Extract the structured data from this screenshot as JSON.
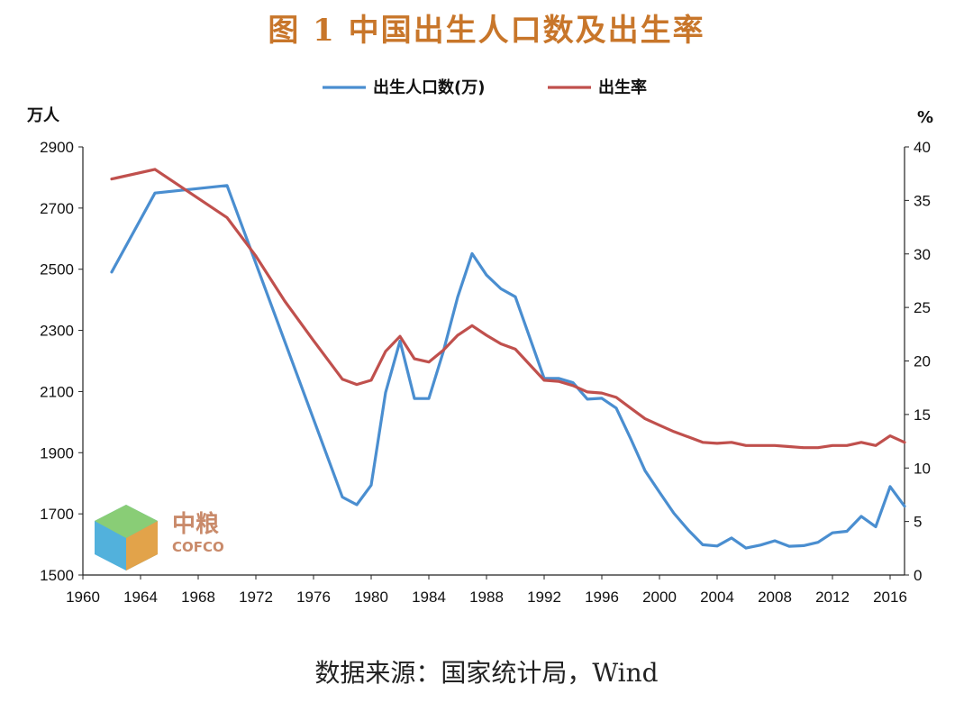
{
  "title": "图 1 中国出生人口数及出生率",
  "source": "数据来源：国家统计局，Wind",
  "logo": {
    "cn": "中粮",
    "en": "COFCO"
  },
  "chart_data": {
    "type": "line",
    "left_unit": "万人",
    "right_unit": "%",
    "y_left_lim": [
      1500,
      2900
    ],
    "y_left_ticks": [
      1500,
      1700,
      1900,
      2100,
      2300,
      2500,
      2700,
      2900
    ],
    "y_right_lim": [
      0,
      40
    ],
    "y_right_ticks": [
      0,
      5,
      10,
      15,
      20,
      25,
      30,
      35,
      40
    ],
    "x_lim": [
      1960,
      2017
    ],
    "x_ticks": [
      1960,
      1964,
      1968,
      1972,
      1976,
      1980,
      1984,
      1988,
      1992,
      1996,
      2000,
      2004,
      2008,
      2012,
      2016
    ],
    "legend_position": "top-center",
    "series": [
      {
        "name": "出生人口数(万)",
        "axis": "left",
        "color": "#4a8ed0",
        "x": [
          1962,
          1965,
          1970,
          1978,
          1979,
          1980,
          1981,
          1982,
          1983,
          1984,
          1985,
          1986,
          1987,
          1988,
          1989,
          1990,
          1992,
          1993,
          1994,
          1995,
          1996,
          1997,
          1998,
          1999,
          2000,
          2001,
          2002,
          2003,
          2004,
          2005,
          2006,
          2007,
          2008,
          2009,
          2010,
          2011,
          2012,
          2013,
          2014,
          2015,
          2016,
          2017
        ],
        "values": [
          2491,
          2749,
          2774,
          1755,
          1730,
          1794,
          2097,
          2265,
          2077,
          2077,
          2230,
          2409,
          2551,
          2481,
          2436,
          2410,
          2143,
          2143,
          2129,
          2075,
          2078,
          2046,
          1946,
          1841,
          1771,
          1702,
          1647,
          1599,
          1595,
          1621,
          1588,
          1598,
          1612,
          1594,
          1596,
          1607,
          1638,
          1643,
          1692,
          1658,
          1789,
          1725
        ]
      },
      {
        "name": "出生率",
        "axis": "right",
        "color": "#c0504d",
        "x": [
          1962,
          1965,
          1970,
          1972,
          1974,
          1976,
          1978,
          1979,
          1980,
          1981,
          1982,
          1983,
          1984,
          1985,
          1986,
          1987,
          1988,
          1989,
          1990,
          1992,
          1993,
          1994,
          1995,
          1996,
          1997,
          1998,
          1999,
          2000,
          2001,
          2002,
          2003,
          2004,
          2005,
          2006,
          2007,
          2008,
          2009,
          2010,
          2011,
          2012,
          2013,
          2014,
          2015,
          2016,
          2017
        ],
        "values": [
          37.0,
          37.9,
          33.4,
          29.8,
          25.6,
          21.9,
          18.3,
          17.8,
          18.2,
          20.9,
          22.3,
          20.2,
          19.9,
          21.0,
          22.4,
          23.3,
          22.4,
          21.6,
          21.1,
          18.2,
          18.1,
          17.7,
          17.1,
          17.0,
          16.6,
          15.6,
          14.6,
          14.0,
          13.4,
          12.9,
          12.4,
          12.3,
          12.4,
          12.1,
          12.1,
          12.1,
          12.0,
          11.9,
          11.9,
          12.1,
          12.1,
          12.4,
          12.1,
          13.0,
          12.4
        ]
      }
    ]
  }
}
